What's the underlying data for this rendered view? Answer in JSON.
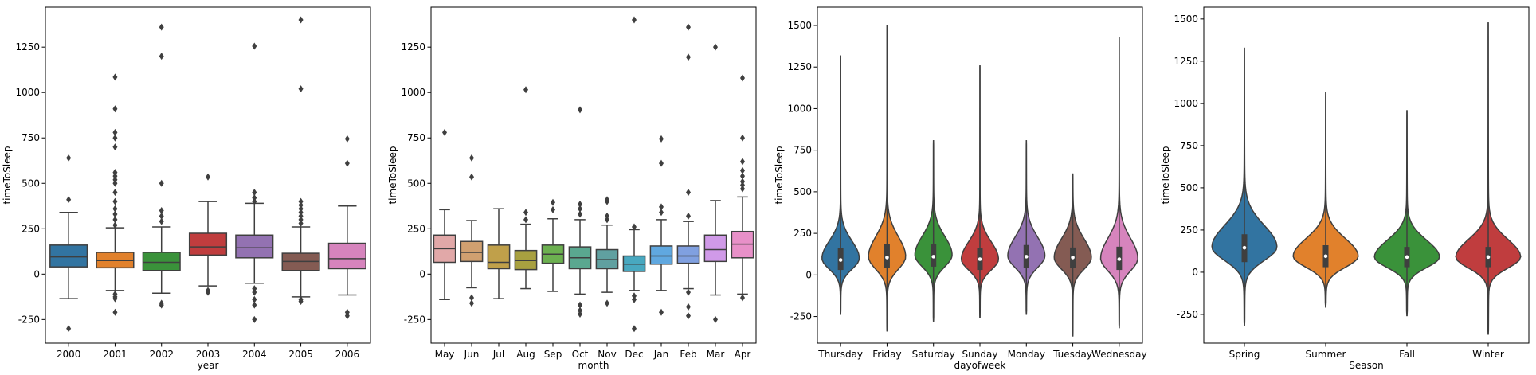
{
  "chart_data": [
    {
      "type": "box",
      "xlabel": "year",
      "ylabel": "timeToSleep",
      "ylim": [
        -380,
        1470
      ],
      "yticks": [
        -250,
        0,
        250,
        500,
        750,
        1000,
        1250
      ],
      "categories": [
        "2000",
        "2001",
        "2002",
        "2003",
        "2004",
        "2005",
        "2006"
      ],
      "colors": [
        "#3274a1",
        "#e1812c",
        "#3a923a",
        "#c03d3e",
        "#9372b2",
        "#845b53",
        "#d684bd"
      ],
      "boxes": [
        {
          "whisker_low": -135,
          "q1": 40,
          "median": 95,
          "q3": 160,
          "whisker_high": 340,
          "outliers": [
            -300,
            410,
            640
          ]
        },
        {
          "whisker_low": -90,
          "q1": 35,
          "median": 75,
          "q3": 120,
          "whisker_high": 255,
          "outliers": [
            -110,
            -125,
            -135,
            -210,
            270,
            300,
            330,
            360,
            400,
            450,
            500,
            520,
            540,
            560,
            700,
            750,
            780,
            910,
            1085
          ]
        },
        {
          "whisker_low": -105,
          "q1": 20,
          "median": 65,
          "q3": 120,
          "whisker_high": 260,
          "outliers": [
            -160,
            -170,
            290,
            320,
            350,
            500,
            1200,
            1360
          ]
        },
        {
          "whisker_low": -65,
          "q1": 105,
          "median": 150,
          "q3": 225,
          "whisker_high": 400,
          "outliers": [
            -90,
            -100,
            535
          ]
        },
        {
          "whisker_low": -50,
          "q1": 90,
          "median": 145,
          "q3": 215,
          "whisker_high": 390,
          "outliers": [
            -80,
            -100,
            -140,
            -170,
            -250,
            400,
            420,
            450,
            1255
          ]
        },
        {
          "whisker_low": -125,
          "q1": 20,
          "median": 70,
          "q3": 115,
          "whisker_high": 260,
          "outliers": [
            -140,
            -150,
            280,
            300,
            320,
            340,
            360,
            380,
            400,
            1020,
            1400
          ]
        },
        {
          "whisker_low": -115,
          "q1": 30,
          "median": 85,
          "q3": 170,
          "whisker_high": 375,
          "outliers": [
            -210,
            -230,
            610,
            745
          ]
        }
      ]
    },
    {
      "type": "box",
      "xlabel": "month",
      "ylabel": "timeToSleep",
      "ylim": [
        -380,
        1470
      ],
      "yticks": [
        -250,
        0,
        250,
        500,
        750,
        1000,
        1250
      ],
      "categories": [
        "May",
        "Jun",
        "Jul",
        "Aug",
        "Sep",
        "Oct",
        "Nov",
        "Dec",
        "Jan",
        "Feb",
        "Mar",
        "Apr"
      ],
      "colors": [
        "#e1a8a8",
        "#d0a070",
        "#c0a04a",
        "#a8a040",
        "#6cb050",
        "#5aa890",
        "#60a0a0",
        "#48a8c0",
        "#60a8e0",
        "#80a0e0",
        "#d09ae8",
        "#e890c8"
      ],
      "boxes": [
        {
          "whisker_low": -140,
          "q1": 65,
          "median": 140,
          "q3": 215,
          "whisker_high": 355,
          "outliers": [
            780
          ]
        },
        {
          "whisker_low": -75,
          "q1": 70,
          "median": 120,
          "q3": 180,
          "whisker_high": 295,
          "outliers": [
            -130,
            -160,
            535,
            640
          ]
        },
        {
          "whisker_low": -135,
          "q1": 30,
          "median": 65,
          "q3": 160,
          "whisker_high": 360,
          "outliers": []
        },
        {
          "whisker_low": -80,
          "q1": 25,
          "median": 75,
          "q3": 130,
          "whisker_high": 275,
          "outliers": [
            300,
            340,
            1015
          ]
        },
        {
          "whisker_low": -95,
          "q1": 60,
          "median": 110,
          "q3": 160,
          "whisker_high": 305,
          "outliers": [
            355,
            395
          ]
        },
        {
          "whisker_low": -110,
          "q1": 30,
          "median": 90,
          "q3": 150,
          "whisker_high": 300,
          "outliers": [
            -170,
            -200,
            -220,
            330,
            360,
            385,
            905
          ]
        },
        {
          "whisker_low": -100,
          "q1": 30,
          "median": 80,
          "q3": 135,
          "whisker_high": 270,
          "outliers": [
            -160,
            300,
            320,
            400,
            410
          ]
        },
        {
          "whisker_low": -90,
          "q1": 15,
          "median": 55,
          "q3": 100,
          "whisker_high": 245,
          "outliers": [
            -120,
            -140,
            -300,
            260,
            1400
          ]
        },
        {
          "whisker_low": -90,
          "q1": 55,
          "median": 100,
          "q3": 155,
          "whisker_high": 300,
          "outliers": [
            -210,
            340,
            370,
            610,
            745
          ]
        },
        {
          "whisker_low": -80,
          "q1": 60,
          "median": 100,
          "q3": 155,
          "whisker_high": 290,
          "outliers": [
            -100,
            -180,
            -230,
            320,
            450,
            1195,
            1360
          ]
        },
        {
          "whisker_low": -115,
          "q1": 70,
          "median": 135,
          "q3": 215,
          "whisker_high": 405,
          "outliers": [
            -250,
            1250
          ]
        },
        {
          "whisker_low": -110,
          "q1": 90,
          "median": 165,
          "q3": 235,
          "whisker_high": 425,
          "outliers": [
            -130,
            470,
            490,
            510,
            540,
            570,
            620,
            750,
            1080
          ]
        }
      ]
    },
    {
      "type": "violin",
      "xlabel": "dayofweek",
      "ylabel": "timeToSleep",
      "ylim": [
        -410,
        1610
      ],
      "yticks": [
        -250,
        0,
        250,
        500,
        750,
        1000,
        1250,
        1500
      ],
      "categories": [
        "Thursday",
        "Friday",
        "Saturday",
        "Sunday",
        "Monday",
        "Tuesday",
        "Wednesday"
      ],
      "colors": [
        "#3274a1",
        "#e1812c",
        "#3a923a",
        "#c03d3e",
        "#9372b2",
        "#845b53",
        "#d684bd"
      ],
      "violins": [
        {
          "min": -240,
          "max": 1320,
          "q1": 30,
          "median": 90,
          "q3": 160,
          "mode": 100,
          "spread": 65
        },
        {
          "min": -340,
          "max": 1500,
          "q1": 40,
          "median": 105,
          "q3": 185,
          "mode": 110,
          "spread": 75
        },
        {
          "min": -280,
          "max": 810,
          "q1": 50,
          "median": 110,
          "q3": 185,
          "mode": 120,
          "spread": 70
        },
        {
          "min": -260,
          "max": 1260,
          "q1": 30,
          "median": 95,
          "q3": 160,
          "mode": 95,
          "spread": 65
        },
        {
          "min": -240,
          "max": 810,
          "q1": 40,
          "median": 110,
          "q3": 180,
          "mode": 115,
          "spread": 70
        },
        {
          "min": -370,
          "max": 610,
          "q1": 40,
          "median": 105,
          "q3": 165,
          "mode": 105,
          "spread": 70
        },
        {
          "min": -320,
          "max": 1430,
          "q1": 30,
          "median": 95,
          "q3": 170,
          "mode": 100,
          "spread": 75
        }
      ]
    },
    {
      "type": "violin",
      "xlabel": "Season",
      "ylabel": "timeToSleep",
      "ylim": [
        -420,
        1570
      ],
      "yticks": [
        -250,
        0,
        250,
        500,
        750,
        1000,
        1250,
        1500
      ],
      "categories": [
        "Spring",
        "Summer",
        "Fall",
        "Winter"
      ],
      "colors": [
        "#3274a1",
        "#e1812c",
        "#3a923a",
        "#c03d3e"
      ],
      "violins": [
        {
          "min": -320,
          "max": 1330,
          "q1": 60,
          "median": 145,
          "q3": 225,
          "mode": 150,
          "spread": 80
        },
        {
          "min": -210,
          "max": 1070,
          "q1": 30,
          "median": 95,
          "q3": 160,
          "mode": 95,
          "spread": 65
        },
        {
          "min": -260,
          "max": 960,
          "q1": 30,
          "median": 90,
          "q3": 150,
          "mode": 90,
          "spread": 62
        },
        {
          "min": -370,
          "max": 1480,
          "q1": 30,
          "median": 90,
          "q3": 150,
          "mode": 90,
          "spread": 65
        }
      ]
    }
  ]
}
